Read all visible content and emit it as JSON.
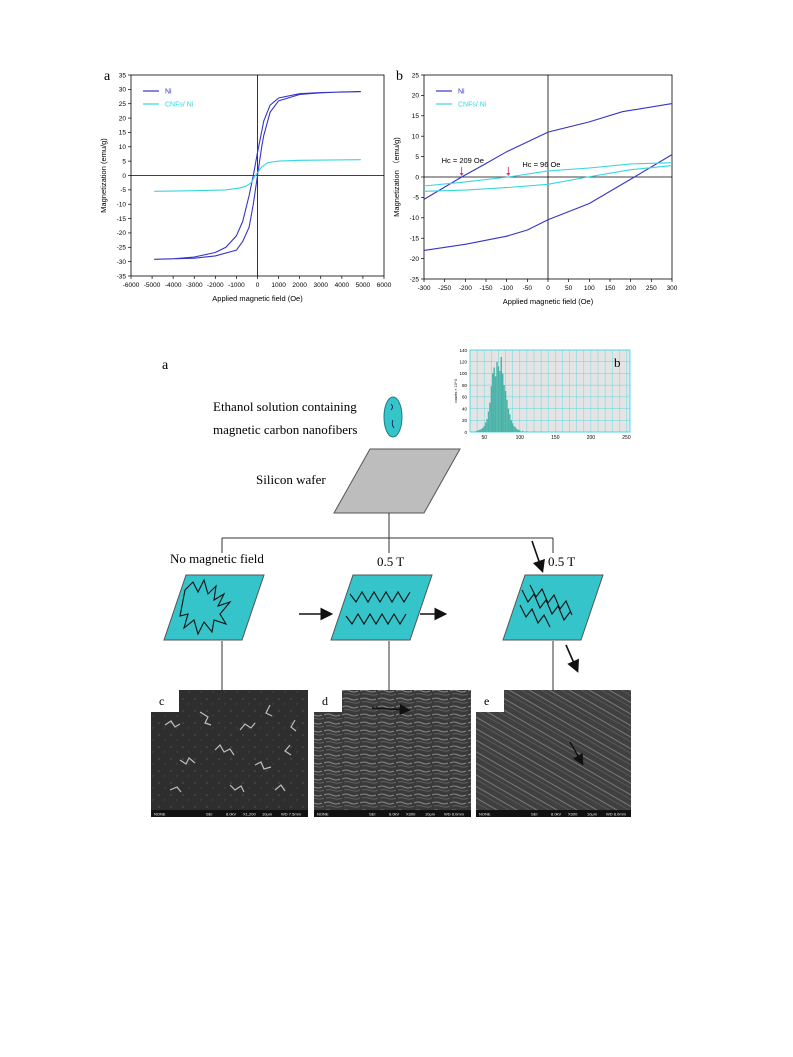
{
  "figure1": {
    "panel_a_letter": "a",
    "panel_b_letter": "b",
    "chart_data": [
      {
        "type": "line",
        "panel": "a",
        "xlabel": "Applied magnetic field (Oe)",
        "ylabel": "Magnetization (emu/g)",
        "xlim": [
          -6000,
          6000
        ],
        "ylim": [
          -35,
          35
        ],
        "x_ticks": [
          -6000,
          -5000,
          -4000,
          -3000,
          -2000,
          -1000,
          0,
          1000,
          2000,
          3000,
          4000,
          5000,
          6000
        ],
        "y_ticks": [
          -35,
          -30,
          -25,
          -20,
          -15,
          -10,
          -5,
          0,
          5,
          10,
          15,
          20,
          25,
          30,
          35
        ],
        "legend_position": "top-left",
        "series": [
          {
            "name": "Ni",
            "color": "#3535c8",
            "points": [
              [
                -4900,
                -29.2
              ],
              [
                -4000,
                -29
              ],
              [
                -3000,
                -28.4
              ],
              [
                -2000,
                -26.8
              ],
              [
                -1500,
                -25
              ],
              [
                -1000,
                -21
              ],
              [
                -700,
                -16
              ],
              [
                -400,
                -7
              ],
              [
                -200,
                0
              ],
              [
                0,
                8
              ],
              [
                300,
                19
              ],
              [
                600,
                24.5
              ],
              [
                1000,
                27
              ],
              [
                2000,
                28.5
              ],
              [
                3000,
                28.9
              ],
              [
                4900,
                29.2
              ],
              [
                4000,
                29.1
              ],
              [
                3000,
                28.8
              ],
              [
                2000,
                28.2
              ],
              [
                1000,
                26
              ],
              [
                600,
                22
              ],
              [
                300,
                14
              ],
              [
                200,
                10
              ],
              [
                0,
                0
              ],
              [
                -200,
                -10
              ],
              [
                -400,
                -18
              ],
              [
                -700,
                -23
              ],
              [
                -1000,
                -26
              ],
              [
                -2000,
                -28
              ],
              [
                -3000,
                -28.8
              ],
              [
                -4900,
                -29.2
              ]
            ]
          },
          {
            "name": "CNFs/ Ni",
            "color": "#36d6e0",
            "points": [
              [
                -4900,
                -5.5
              ],
              [
                -3000,
                -5.3
              ],
              [
                -1500,
                -5
              ],
              [
                -800,
                -4.3
              ],
              [
                -500,
                -3.5
              ],
              [
                -300,
                -2.5
              ],
              [
                -100,
                0
              ],
              [
                0,
                1
              ],
              [
                200,
                3
              ],
              [
                500,
                4.5
              ],
              [
                1000,
                5
              ],
              [
                2000,
                5.3
              ],
              [
                4900,
                5.5
              ]
            ]
          }
        ]
      },
      {
        "type": "line",
        "panel": "b",
        "xlabel": "Applied magnetic field (Oe)",
        "ylabel": "Magnetization （emu/g)",
        "xlim": [
          -300,
          300
        ],
        "ylim": [
          -25,
          25
        ],
        "x_ticks": [
          -300,
          -250,
          -200,
          -150,
          -100,
          -50,
          0,
          50,
          100,
          150,
          200,
          250,
          300
        ],
        "y_ticks": [
          -25,
          -20,
          -15,
          -10,
          -5,
          0,
          5,
          10,
          15,
          20,
          25
        ],
        "legend_position": "top-left",
        "annotations": [
          "Hc = 209 Oe",
          "Hc = 96 Oe"
        ],
        "annotation_points": [
          [
            -209,
            0
          ],
          [
            -96,
            0
          ]
        ],
        "series": [
          {
            "name": "Ni",
            "color": "#3535c8",
            "points": [
              [
                -300,
                -5.5
              ],
              [
                -209,
                0
              ],
              [
                -150,
                3.3
              ],
              [
                -100,
                6.2
              ],
              [
                0,
                11
              ],
              [
                100,
                13.5
              ],
              [
                180,
                16
              ],
              [
                300,
                18
              ]
            ]
          },
          {
            "name": "Ni",
            "color": "#3535c8",
            "points": [
              [
                -300,
                -18
              ],
              [
                -200,
                -16.5
              ],
              [
                -100,
                -14.5
              ],
              [
                -50,
                -13
              ],
              [
                0,
                -10.5
              ],
              [
                100,
                -6.5
              ],
              [
                209,
                0
              ],
              [
                300,
                5.5
              ]
            ]
          },
          {
            "name": "CNFs/ Ni",
            "color": "#36d6e0",
            "points": [
              [
                -300,
                -2.2
              ],
              [
                -200,
                -1.2
              ],
              [
                -96,
                0
              ],
              [
                0,
                1.5
              ],
              [
                100,
                2.2
              ],
              [
                200,
                3.2
              ],
              [
                300,
                3.5
              ]
            ]
          },
          {
            "name": "CNFs/ Ni",
            "color": "#36d6e0",
            "points": [
              [
                -300,
                -3.5
              ],
              [
                -200,
                -3.2
              ],
              [
                -100,
                -2.6
              ],
              [
                0,
                -1.8
              ],
              [
                96,
                0
              ],
              [
                200,
                1.8
              ],
              [
                300,
                2.8
              ]
            ]
          }
        ]
      }
    ]
  },
  "figure2": {
    "panel_a_letter": "a",
    "inset_letter": "b",
    "solution_label_line1": "Ethanol solution containing",
    "solution_label_line2": "magnetic carbon nanofibers",
    "wafer_label": "Silicon wafer",
    "branch_labels": [
      "No magnetic field",
      "0.5 T",
      "0.5 T"
    ],
    "sem_letters": [
      "c",
      "d",
      "e"
    ],
    "sem_footers": [
      [
        "NONE",
        "SEI",
        "8.0kV",
        "X1,200",
        "10μm",
        "WD 7.5mm"
      ],
      [
        "NONE",
        "SEI",
        "8.0kV",
        "X300",
        "10μm",
        "WD 8.0mm"
      ],
      [
        "NONE",
        "SEI",
        "8.0kV",
        "X300",
        "10μm",
        "WD 8.0mm"
      ]
    ],
    "histogram": {
      "type": "bar",
      "ylabel": "counts × 10^3",
      "xlim": [
        30,
        255
      ],
      "ylim": [
        0,
        140
      ],
      "x_ticks": [
        50,
        100,
        150,
        200,
        250
      ],
      "y_ticks": [
        0,
        20,
        40,
        60,
        80,
        100,
        120,
        140
      ],
      "color": "#4ab3a8",
      "bins": [
        [
          38,
          1
        ],
        [
          40,
          2
        ],
        [
          42,
          3
        ],
        [
          44,
          4
        ],
        [
          46,
          5
        ],
        [
          48,
          7
        ],
        [
          50,
          10
        ],
        [
          52,
          16
        ],
        [
          54,
          22
        ],
        [
          56,
          35
        ],
        [
          58,
          50
        ],
        [
          60,
          78
        ],
        [
          62,
          100
        ],
        [
          64,
          110
        ],
        [
          66,
          95
        ],
        [
          68,
          120
        ],
        [
          70,
          112
        ],
        [
          72,
          104
        ],
        [
          74,
          128
        ],
        [
          76,
          100
        ],
        [
          78,
          80
        ],
        [
          80,
          70
        ],
        [
          82,
          55
        ],
        [
          84,
          40
        ],
        [
          86,
          30
        ],
        [
          88,
          20
        ],
        [
          90,
          15
        ],
        [
          92,
          10
        ],
        [
          94,
          8
        ],
        [
          96,
          5
        ],
        [
          98,
          4
        ],
        [
          100,
          3
        ],
        [
          104,
          2
        ],
        [
          110,
          1
        ],
        [
          120,
          1
        ],
        [
          130,
          1
        ]
      ]
    },
    "colors": {
      "substrate": "#35c4c9",
      "wafer": "#bdbdbd",
      "droplet": "#35c4c9"
    }
  }
}
